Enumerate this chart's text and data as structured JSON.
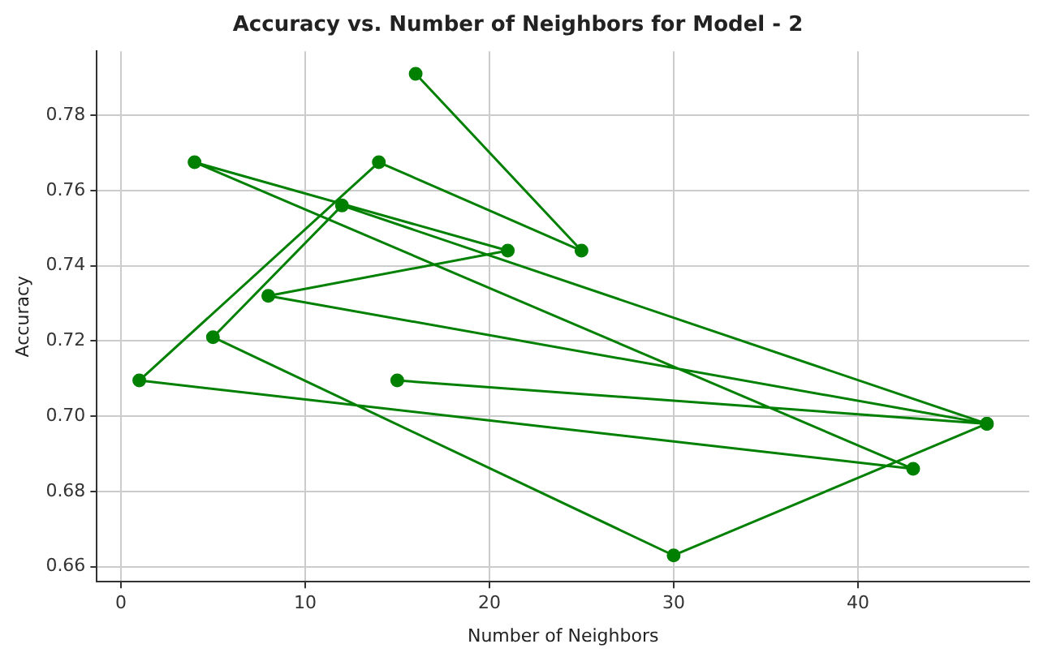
{
  "chart_data": {
    "type": "line",
    "title": "Accuracy vs. Number of Neighbors for Model - 2",
    "xlabel": "Number of Neighbors",
    "ylabel": "Accuracy",
    "x": [
      16,
      25,
      14,
      1,
      43,
      4,
      21,
      8,
      47,
      30,
      5,
      12,
      47,
      15
    ],
    "series": [
      {
        "color": "#008000",
        "values": [
          0.791,
          0.744,
          0.7675,
          0.7095,
          0.686,
          0.7675,
          0.744,
          0.732,
          0.698,
          0.663,
          0.721,
          0.756,
          0.698,
          0.7095
        ]
      }
    ],
    "xlim": [
      -1.3,
      49.3
    ],
    "xticks": [
      0,
      10,
      20,
      30,
      40
    ],
    "ylim": [
      0.656,
      0.797
    ],
    "yticks": [
      0.66,
      0.68,
      {
        "value": 0.7,
        "label": "0.70"
      },
      0.72,
      0.74,
      0.76,
      0.78
    ],
    "grid": true,
    "marker": "circle",
    "line_style": "solid"
  }
}
